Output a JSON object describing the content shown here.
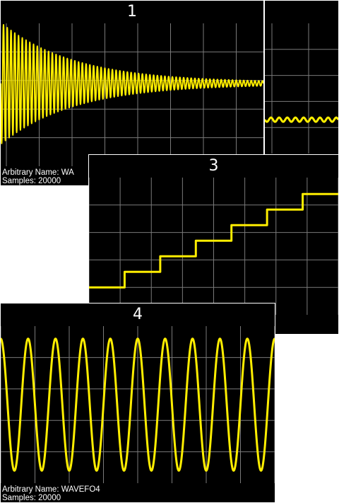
{
  "colors": {
    "background": "#000000",
    "grid": "#7a7a7a",
    "trace": "#ffee00",
    "text": "#ffffff",
    "border": "#ffffff"
  },
  "panels": [
    {
      "number": "1",
      "waveform": "damped-sine",
      "footer": {
        "name_line": "Arbitrary Name: WA",
        "samples_line": "Samples: 20000"
      }
    },
    {
      "number": "",
      "waveform": "low-amplitude-sine",
      "footer": {
        "name_line": "",
        "samples_line": ""
      }
    },
    {
      "number": "3",
      "waveform": "staircase"
    },
    {
      "number": "4",
      "waveform": "sine",
      "footer": {
        "name_line": "Arbitrary Name: WAVEFO4",
        "samples_line": "Samples: 20000"
      }
    }
  ]
}
